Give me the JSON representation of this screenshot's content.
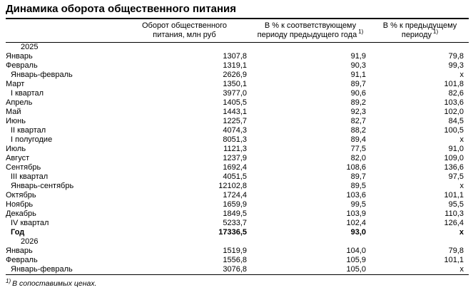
{
  "title": "Динамика оборота общественного питания",
  "table": {
    "headers": {
      "col1": "",
      "col2_line1": "Оборот общественного",
      "col2_line2": "питания, млн руб",
      "col3_line1": "В % к соответствующему",
      "col3_line2": "периоду предыдущего года",
      "col3_sup": "1)",
      "col4_line1": "В % к предыдущему",
      "col4_line2": "периоду",
      "col4_sup": "1)"
    },
    "rows": [
      {
        "label": "2025",
        "type": "year",
        "v1": "",
        "v2": "",
        "v3": ""
      },
      {
        "label": "Январь",
        "type": "month",
        "v1": "1307,8",
        "v2": "91,9",
        "v3": "79,8"
      },
      {
        "label": "Февраль",
        "type": "month",
        "v1": "1319,1",
        "v2": "90,3",
        "v3": "99,3"
      },
      {
        "label": "Январь-февраль",
        "type": "sub",
        "v1": "2626,9",
        "v2": "91,1",
        "v3": "х"
      },
      {
        "label": "Март",
        "type": "month",
        "v1": "1350,1",
        "v2": "89,7",
        "v3": "101,8"
      },
      {
        "label": "I квартал",
        "type": "sub",
        "v1": "3977,0",
        "v2": "90,6",
        "v3": "82,6"
      },
      {
        "label": "Апрель",
        "type": "month",
        "v1": "1405,5",
        "v2": "89,2",
        "v3": "103,6"
      },
      {
        "label": "Май",
        "type": "month",
        "v1": "1443,1",
        "v2": "92,3",
        "v3": "102,0"
      },
      {
        "label": "Июнь",
        "type": "month",
        "v1": "1225,7",
        "v2": "82,7",
        "v3": "84,5"
      },
      {
        "label": "II квартал",
        "type": "sub",
        "v1": "4074,3",
        "v2": "88,2",
        "v3": "100,5"
      },
      {
        "label": "I полугодие",
        "type": "sub",
        "v1": "8051,3",
        "v2": "89,4",
        "v3": "х"
      },
      {
        "label": "Июль",
        "type": "month",
        "v1": "1121,3",
        "v2": "77,5",
        "v3": "91,0"
      },
      {
        "label": "Август",
        "type": "month",
        "v1": "1237,9",
        "v2": "82,0",
        "v3": "109,0"
      },
      {
        "label": "Сентябрь",
        "type": "month",
        "v1": "1692,4",
        "v2": "108,6",
        "v3": "136,6"
      },
      {
        "label": "III квартал",
        "type": "sub",
        "v1": "4051,5",
        "v2": "89,7",
        "v3": "97,5"
      },
      {
        "label": "Январь-сентябрь",
        "type": "sub",
        "v1": "12102,8",
        "v2": "89,5",
        "v3": "х"
      },
      {
        "label": "Октябрь",
        "type": "month",
        "v1": "1724,4",
        "v2": "103,6",
        "v3": "101,1"
      },
      {
        "label": "Ноябрь",
        "type": "month",
        "v1": "1659,9",
        "v2": "99,5",
        "v3": "95,5"
      },
      {
        "label": "Декабрь",
        "type": "month",
        "v1": "1849,5",
        "v2": "103,9",
        "v3": "110,3"
      },
      {
        "label": "IV квартал",
        "type": "sub",
        "v1": "5233,7",
        "v2": "102,4",
        "v3": "126,4"
      },
      {
        "label": "Год",
        "type": "total",
        "v1": "17336,5",
        "v2": "93,0",
        "v3": "х"
      },
      {
        "label": "2026",
        "type": "year",
        "v1": "",
        "v2": "",
        "v3": ""
      },
      {
        "label": "Январь",
        "type": "month",
        "v1": "1519,9",
        "v2": "104,0",
        "v3": "79,8"
      },
      {
        "label": "Февраль",
        "type": "month",
        "v1": "1556,8",
        "v2": "105,9",
        "v3": "101,1"
      },
      {
        "label": "Январь-февраль",
        "type": "sub",
        "v1": "3076,8",
        "v2": "105,0",
        "v3": "х"
      }
    ]
  },
  "footnote": {
    "sup": "1)",
    "text": "В сопоставимых ценах."
  }
}
